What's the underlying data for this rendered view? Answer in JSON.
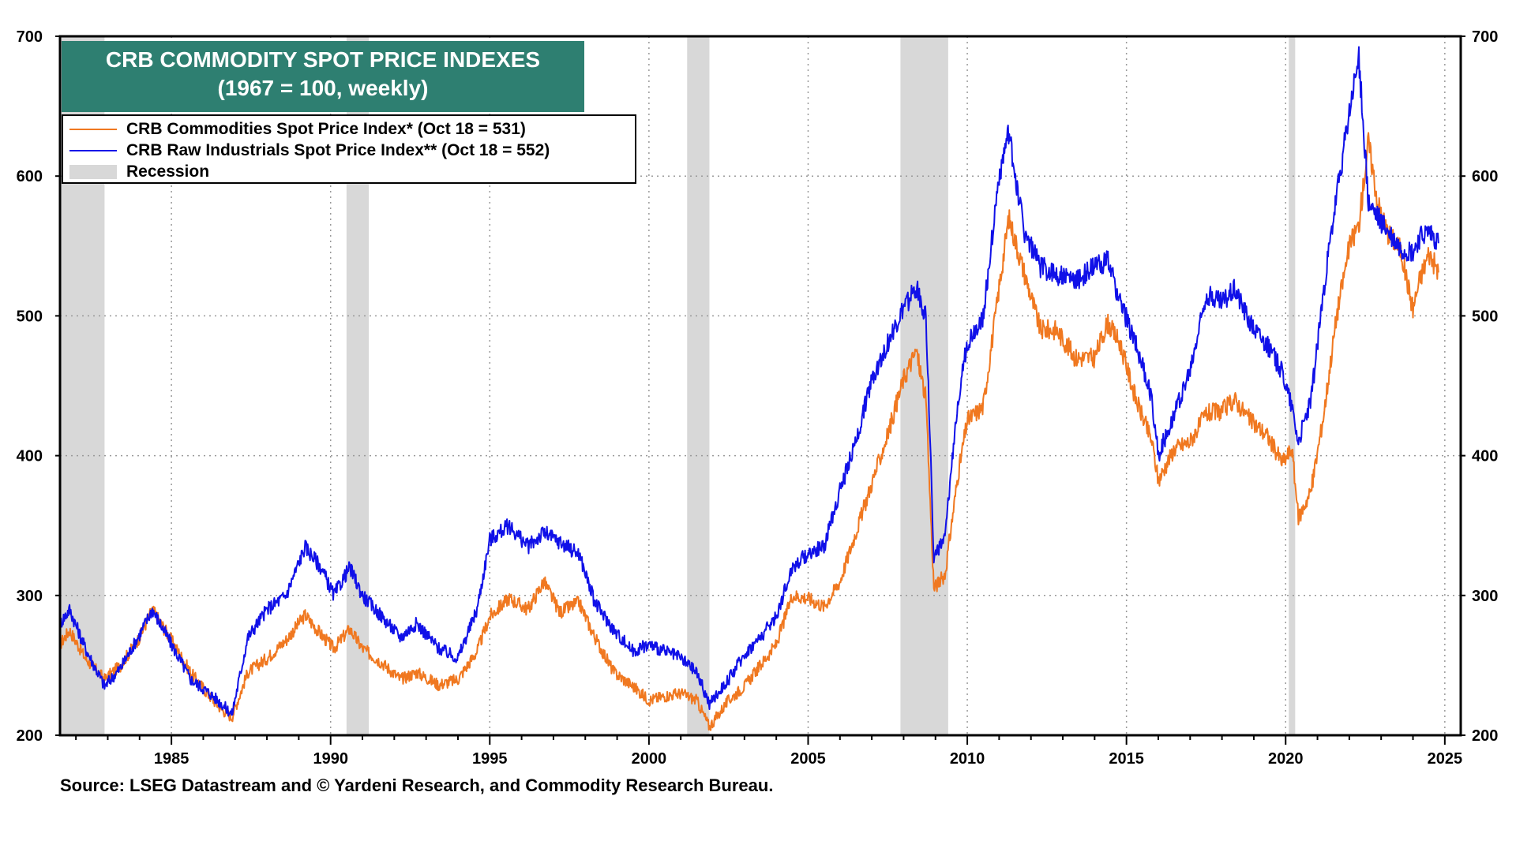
{
  "chart_data": {
    "type": "line",
    "title": "CRB COMMODITY SPOT PRICE INDEXES",
    "subtitle": "(1967 = 100, weekly)",
    "xlim": [
      1981.5,
      2025.5
    ],
    "ylim": [
      200,
      700
    ],
    "x_ticks": [
      1985,
      1990,
      1995,
      2000,
      2005,
      2010,
      2015,
      2020,
      2025
    ],
    "y_ticks": [
      200,
      300,
      400,
      500,
      600,
      700
    ],
    "grid": true,
    "legend_position": "top-left",
    "series": [
      {
        "name": "CRB Commodities Spot Price Index* (Oct 18 = 531)",
        "color": "#f07820",
        "x": [
          1981.5,
          1981.8,
          1982.3,
          1982.9,
          1983.4,
          1984.0,
          1984.4,
          1985.0,
          1985.6,
          1986.2,
          1986.6,
          1986.9,
          1987.4,
          1988.0,
          1988.6,
          1989.2,
          1989.7,
          1990.1,
          1990.6,
          1991.0,
          1991.6,
          1992.2,
          1992.7,
          1993.4,
          1994.0,
          1994.6,
          1995.0,
          1995.6,
          1996.2,
          1996.7,
          1997.2,
          1997.8,
          1998.3,
          1998.9,
          1999.5,
          2000.0,
          2000.5,
          2001.0,
          2001.5,
          2001.9,
          2002.5,
          2003.0,
          2003.5,
          2004.0,
          2004.5,
          2005.0,
          2005.5,
          2006.0,
          2006.5,
          2007.0,
          2007.5,
          2008.0,
          2008.4,
          2008.7,
          2008.95,
          2009.3,
          2009.7,
          2010.0,
          2010.5,
          2011.0,
          2011.3,
          2011.8,
          2012.3,
          2012.8,
          2013.4,
          2014.0,
          2014.4,
          2014.8,
          2015.3,
          2015.8,
          2016.0,
          2016.5,
          2017.0,
          2017.5,
          2018.0,
          2018.4,
          2018.9,
          2019.4,
          2019.9,
          2020.2,
          2020.4,
          2020.8,
          2021.2,
          2021.6,
          2022.0,
          2022.3,
          2022.6,
          2022.9,
          2023.2,
          2023.6,
          2024.0,
          2024.2,
          2024.5,
          2024.8
        ],
        "values": [
          265,
          275,
          255,
          240,
          250,
          270,
          290,
          268,
          245,
          228,
          218,
          213,
          245,
          255,
          268,
          286,
          272,
          262,
          276,
          262,
          252,
          240,
          245,
          236,
          240,
          260,
          285,
          298,
          290,
          310,
          288,
          295,
          270,
          245,
          235,
          225,
          228,
          230,
          225,
          206,
          225,
          235,
          250,
          265,
          300,
          298,
          292,
          310,
          345,
          380,
          415,
          455,
          475,
          440,
          305,
          315,
          385,
          425,
          435,
          520,
          570,
          530,
          490,
          490,
          470,
          470,
          495,
          480,
          440,
          410,
          382,
          405,
          410,
          430,
          432,
          440,
          425,
          415,
          395,
          405,
          355,
          375,
          430,
          500,
          550,
          565,
          625,
          580,
          560,
          548,
          505,
          525,
          545,
          531
        ]
      },
      {
        "name": "CRB Raw Industrials Spot Price Index** (Oct 18 = 552)",
        "color": "#1010e8",
        "x": [
          1981.5,
          1981.8,
          1982.3,
          1982.9,
          1983.4,
          1984.0,
          1984.4,
          1985.0,
          1985.6,
          1986.2,
          1986.6,
          1986.9,
          1987.4,
          1988.0,
          1988.6,
          1989.2,
          1989.7,
          1990.1,
          1990.6,
          1991.0,
          1991.6,
          1992.2,
          1992.7,
          1993.4,
          1994.0,
          1994.6,
          1995.0,
          1995.6,
          1996.2,
          1996.7,
          1997.2,
          1997.8,
          1998.3,
          1998.9,
          1999.5,
          2000.0,
          2000.5,
          2001.0,
          2001.5,
          2001.9,
          2002.5,
          2003.0,
          2003.5,
          2004.0,
          2004.5,
          2005.0,
          2005.5,
          2006.0,
          2006.5,
          2007.0,
          2007.5,
          2008.0,
          2008.4,
          2008.7,
          2008.95,
          2009.3,
          2009.7,
          2010.0,
          2010.5,
          2011.0,
          2011.3,
          2011.8,
          2012.3,
          2012.8,
          2013.4,
          2014.0,
          2014.4,
          2014.8,
          2015.3,
          2015.8,
          2016.0,
          2016.5,
          2017.0,
          2017.5,
          2018.0,
          2018.4,
          2018.9,
          2019.4,
          2019.9,
          2020.2,
          2020.4,
          2020.8,
          2021.2,
          2021.6,
          2022.0,
          2022.3,
          2022.6,
          2022.9,
          2023.2,
          2023.6,
          2024.0,
          2024.2,
          2024.5,
          2024.8
        ],
        "values": [
          280,
          290,
          262,
          235,
          248,
          272,
          290,
          265,
          240,
          230,
          222,
          215,
          270,
          290,
          300,
          335,
          320,
          300,
          320,
          300,
          285,
          270,
          280,
          262,
          255,
          290,
          340,
          350,
          335,
          345,
          338,
          330,
          295,
          275,
          260,
          265,
          260,
          255,
          245,
          222,
          240,
          258,
          270,
          285,
          320,
          330,
          335,
          375,
          410,
          455,
          480,
          505,
          520,
          500,
          328,
          340,
          440,
          480,
          500,
          600,
          630,
          560,
          535,
          530,
          525,
          535,
          540,
          510,
          480,
          440,
          400,
          430,
          460,
          515,
          510,
          520,
          495,
          480,
          460,
          435,
          410,
          440,
          520,
          585,
          645,
          685,
          580,
          570,
          560,
          548,
          545,
          555,
          560,
          552
        ]
      }
    ],
    "recessions": [
      [
        1981.5,
        1982.9
      ],
      [
        1990.5,
        1991.2
      ],
      [
        2001.2,
        2001.9
      ],
      [
        2007.9,
        2009.4
      ],
      [
        2020.1,
        2020.3
      ]
    ],
    "recession_label": "Recession"
  },
  "source": "Source: LSEG Datastream and © Yardeni Research, and Commodity Research Bureau.",
  "colors": {
    "title_bg": "#2e7f71",
    "recession": "#d8d8d8"
  }
}
